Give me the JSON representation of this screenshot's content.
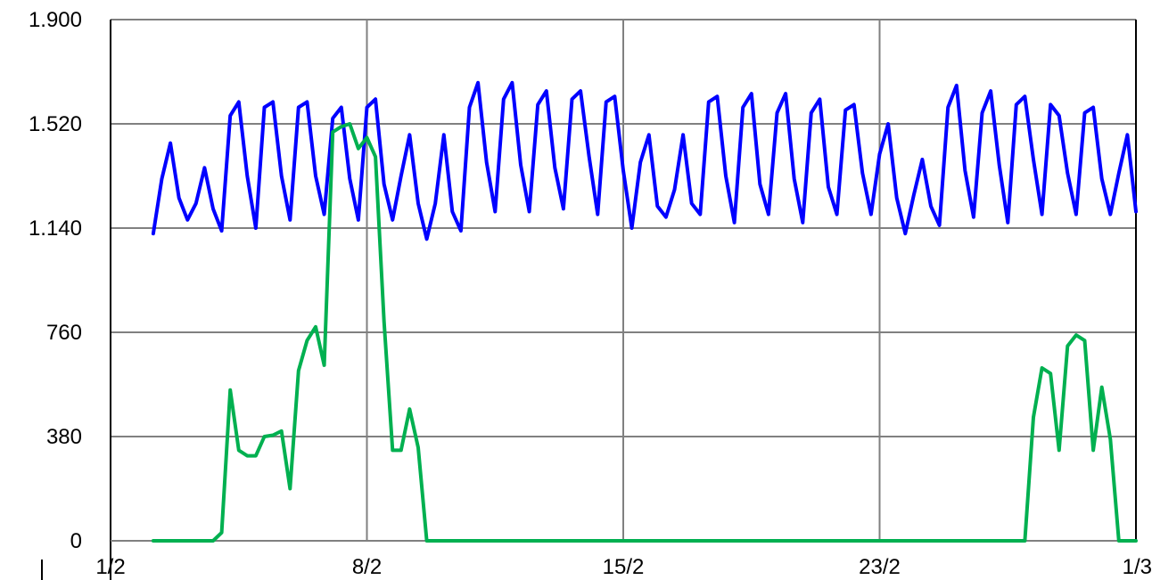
{
  "chart_data": {
    "type": "line",
    "title": "",
    "xlabel": "",
    "ylabel": "",
    "x_ticks": [
      {
        "label": "1/2",
        "day": 0
      },
      {
        "label": "8/2",
        "day": 7.5
      },
      {
        "label": "15/2",
        "day": 15
      },
      {
        "label": "23/2",
        "day": 22.5
      },
      {
        "label": "1/3",
        "day": 30
      }
    ],
    "y_ticks": [
      {
        "label": "0",
        "value": 0
      },
      {
        "label": "380",
        "value": 380
      },
      {
        "label": "760",
        "value": 760
      },
      {
        "label": "1.140",
        "value": 1140
      },
      {
        "label": "1.520",
        "value": 1520
      },
      {
        "label": "1.900",
        "value": 1900
      }
    ],
    "ylim": [
      0,
      1900
    ],
    "xlim": [
      0,
      30
    ],
    "grid": true,
    "series": [
      {
        "color": "#0000ff",
        "x": [
          1.25,
          1.5,
          1.75,
          2,
          2.25,
          2.5,
          2.75,
          3,
          3.25,
          3.5,
          3.75,
          4,
          4.25,
          4.5,
          4.75,
          5,
          5.25,
          5.5,
          5.75,
          6,
          6.25,
          6.5,
          6.75,
          7,
          7.25,
          7.5,
          7.75,
          8,
          8.25,
          8.5,
          8.75,
          9,
          9.25,
          9.5,
          9.75,
          10,
          10.25,
          10.5,
          10.75,
          11,
          11.25,
          11.5,
          11.75,
          12,
          12.25,
          12.5,
          12.75,
          13,
          13.25,
          13.5,
          13.75,
          14,
          14.25,
          14.5,
          14.75,
          15,
          15.25,
          15.5,
          15.75,
          16,
          16.25,
          16.5,
          16.75,
          17,
          17.25,
          17.5,
          17.75,
          18,
          18.25,
          18.5,
          18.75,
          19,
          19.25,
          19.5,
          19.75,
          20,
          20.25,
          20.5,
          20.75,
          21,
          21.25,
          21.5,
          21.75,
          22,
          22.25,
          22.5,
          22.75,
          23,
          23.25,
          23.5,
          23.75,
          24,
          24.25,
          24.5,
          24.75,
          25,
          25.25,
          25.5,
          25.75,
          26,
          26.25,
          26.5,
          26.75,
          27,
          27.25,
          27.5,
          27.75,
          28,
          28.25,
          28.5,
          28.75,
          29,
          29.25,
          29.5,
          29.75,
          30
        ],
        "values": [
          1120,
          1320,
          1450,
          1250,
          1170,
          1230,
          1360,
          1210,
          1130,
          1550,
          1600,
          1330,
          1140,
          1580,
          1600,
          1330,
          1170,
          1580,
          1600,
          1330,
          1190,
          1540,
          1580,
          1320,
          1170,
          1580,
          1610,
          1300,
          1170,
          1330,
          1480,
          1230,
          1100,
          1230,
          1480,
          1200,
          1130,
          1580,
          1670,
          1380,
          1200,
          1610,
          1670,
          1370,
          1200,
          1590,
          1640,
          1360,
          1210,
          1610,
          1640,
          1400,
          1190,
          1600,
          1620,
          1350,
          1140,
          1380,
          1480,
          1220,
          1180,
          1280,
          1480,
          1230,
          1190,
          1600,
          1620,
          1330,
          1160,
          1580,
          1630,
          1300,
          1190,
          1560,
          1630,
          1320,
          1160,
          1560,
          1610,
          1290,
          1190,
          1570,
          1590,
          1340,
          1190,
          1410,
          1520,
          1250,
          1120,
          1260,
          1390,
          1220,
          1150,
          1580,
          1660,
          1350,
          1180,
          1560,
          1640,
          1370,
          1160,
          1590,
          1620,
          1390,
          1190,
          1590,
          1550,
          1340,
          1190,
          1560,
          1580,
          1320,
          1190,
          1340,
          1480,
          1200
        ]
      },
      {
        "color": "#00b050",
        "x": [
          1.25,
          1.5,
          1.75,
          2,
          2.25,
          2.5,
          2.75,
          3,
          3.25,
          3.5,
          3.75,
          4,
          4.25,
          4.5,
          4.75,
          5,
          5.25,
          5.5,
          5.75,
          6,
          6.25,
          6.5,
          6.75,
          7,
          7.25,
          7.5,
          7.75,
          8,
          8.25,
          8.5,
          8.75,
          9,
          9.25,
          9.5,
          9.75,
          10,
          26.25,
          26.5,
          26.75,
          27,
          27.25,
          27.5,
          27.75,
          28,
          28.25,
          28.5,
          28.75,
          29,
          29.25,
          29.5,
          29.75,
          30
        ],
        "values": [
          0,
          0,
          0,
          0,
          0,
          0,
          0,
          0,
          30,
          550,
          330,
          310,
          310,
          380,
          385,
          400,
          190,
          620,
          730,
          780,
          640,
          1490,
          1510,
          1520,
          1430,
          1470,
          1400,
          800,
          330,
          330,
          480,
          340,
          0,
          0,
          0,
          0,
          0,
          0,
          0,
          450,
          630,
          610,
          330,
          710,
          750,
          730,
          330,
          560,
          370,
          0,
          0,
          0
        ]
      }
    ]
  }
}
